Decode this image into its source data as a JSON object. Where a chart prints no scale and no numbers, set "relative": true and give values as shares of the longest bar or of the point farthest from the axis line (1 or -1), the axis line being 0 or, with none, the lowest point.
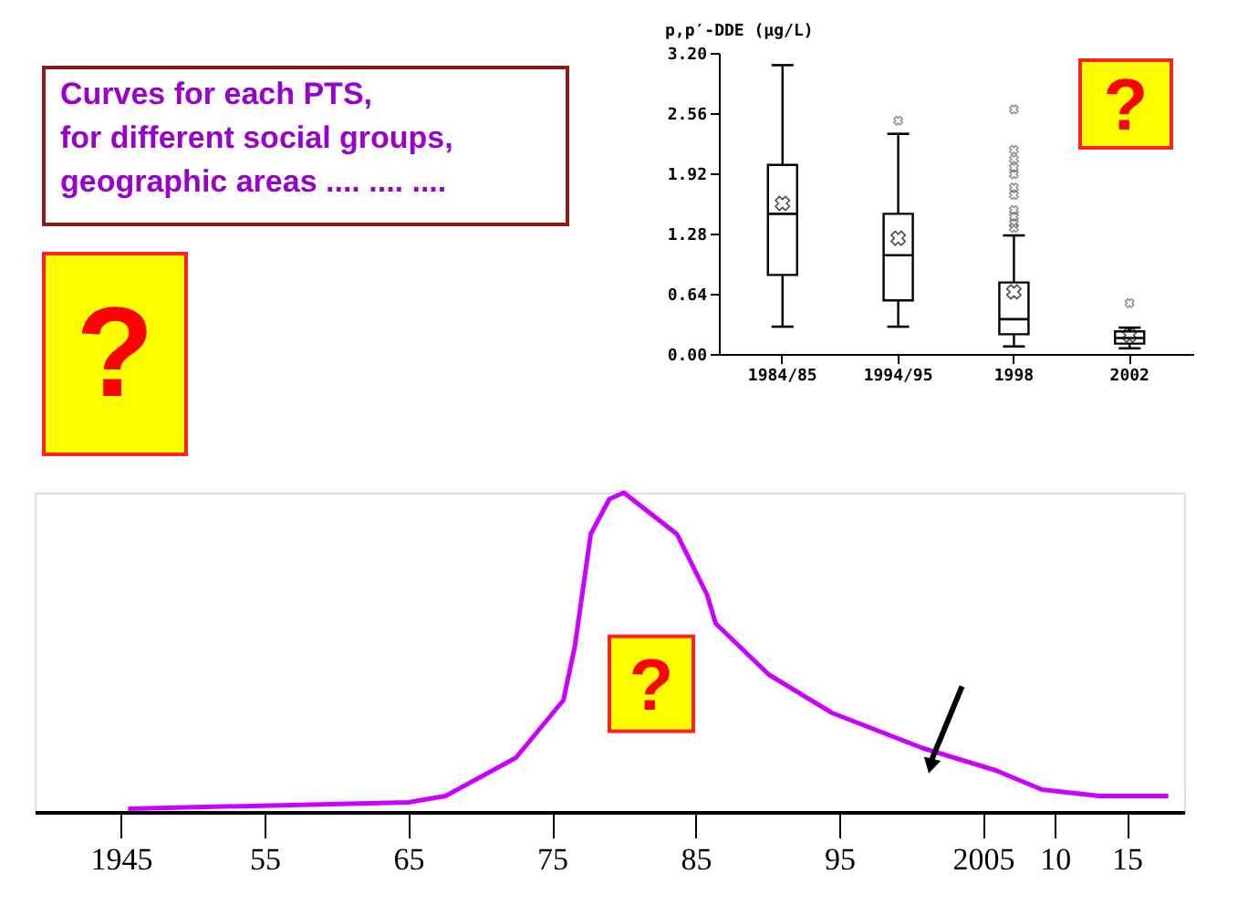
{
  "chart_data": [
    {
      "type": "line",
      "relative": true,
      "x": [
        1945.5,
        1965,
        1967.6,
        1972.5,
        1975.8,
        1976.6,
        1977.7,
        1979,
        1980,
        1983.7,
        1985.8,
        1986.4,
        1990.1,
        1994.5,
        2000.8,
        2005.9,
        2009.1,
        2013.1,
        2017.9
      ],
      "series": [
        {
          "color": "#cc00ff",
          "values": [
            0.01,
            0.03,
            0.05,
            0.17,
            0.35,
            0.52,
            0.87,
            0.98,
            1,
            0.87,
            0.68,
            0.59,
            0.43,
            0.31,
            0.2,
            0.13,
            0.07,
            0.05,
            0.05
          ]
        }
      ],
      "xlim": [
        1939,
        2019
      ],
      "xticks": [
        1945,
        {
          "value": 1955,
          "label": "55"
        },
        {
          "value": 1965,
          "label": "65"
        },
        {
          "value": 1975,
          "label": "75"
        },
        {
          "value": 1985,
          "label": "85"
        },
        {
          "value": 1995,
          "label": "95"
        },
        2005,
        {
          "value": 2010,
          "label": "10"
        },
        {
          "value": 2015,
          "label": "15"
        }
      ],
      "annotations": [
        "Curves for each PTS,\nfor different social groups,\ngeographic areas .... .... ....",
        "?",
        "?"
      ]
    },
    {
      "type": "box",
      "categories": [
        "1984/85",
        "1994/95",
        "1998",
        "2002"
      ],
      "boxes": [
        {
          "low": 0.29,
          "q1": 0.84,
          "median": 1.49,
          "q3": 2.01,
          "high": 3.07,
          "mean": 1.6
        },
        {
          "low": 0.29,
          "q1": 0.57,
          "median": 1.05,
          "q3": 1.49,
          "high": 2.34,
          "mean": 1.23,
          "outliers": [
            2.48
          ]
        },
        {
          "low": 0.08,
          "q1": 0.21,
          "median": 0.37,
          "q3": 0.76,
          "high": 1.26,
          "mean": 0.66,
          "outliers": [
            1.34,
            1.39,
            1.46,
            1.53,
            1.69,
            1.77,
            1.91,
            1.98,
            2.07,
            2.17,
            2.6
          ]
        },
        {
          "low": 0.06,
          "q1": 0.11,
          "median": 0.17,
          "q3": 0.24,
          "high": 0.28,
          "mean": 0.2,
          "outliers": [
            0.54
          ]
        }
      ],
      "ylabel": "p,p′-DDE (μg/L)",
      "ylim": [
        0,
        3.2
      ],
      "yticks": [
        {
          "value": 0,
          "label": "0.00"
        },
        0.64,
        1.28,
        1.92,
        2.56,
        {
          "value": 3.2,
          "label": "3.20"
        }
      ],
      "annotations": [
        "?"
      ]
    }
  ]
}
